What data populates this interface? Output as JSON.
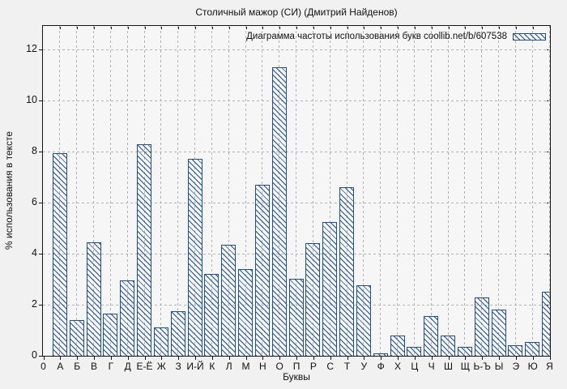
{
  "title": "Столичный мажор (СИ) (Дмитрий Найденов)",
  "legend": {
    "label": "Диаграмма частоты использования букв coollib.net/b/607538"
  },
  "axes": {
    "x_label": "Буквы",
    "y_label": "% использования в тексте",
    "x_origin_label": "0",
    "y_ticks": [
      0,
      2,
      4,
      6,
      8,
      10,
      12
    ]
  },
  "colors": {
    "bar": "#1d4e9e",
    "grid": "#b3b3b3",
    "figure_bg": "#f1f1f1",
    "plot_bg": "#f6f6f6",
    "border": "#151515",
    "text": "#111111"
  },
  "chart_data": {
    "type": "bar",
    "title": "Столичный мажор (СИ) (Дмитрий Найденов)",
    "xlabel": "Буквы",
    "ylabel": "% использования в тексте",
    "ylim": [
      0,
      13
    ],
    "grid": true,
    "legend_position": "top-right-inside",
    "legend_label": "Диаграмма частоты использования букв coollib.net/b/607538",
    "bar_style": "blue diagonal hatch, hollow",
    "categories": [
      "А",
      "Б",
      "В",
      "Г",
      "Д",
      "Е-Ё",
      "Ж",
      "З",
      "И-Й",
      "К",
      "Л",
      "М",
      "Н",
      "О",
      "П",
      "Р",
      "С",
      "Т",
      "У",
      "Ф",
      "Х",
      "Ц",
      "Ч",
      "Ш",
      "Щ",
      "Ь-Ъ",
      "Ы",
      "Э",
      "Ю",
      "Я"
    ],
    "values": [
      7.95,
      1.4,
      4.45,
      1.65,
      2.95,
      8.3,
      1.1,
      1.75,
      7.7,
      3.2,
      4.35,
      3.4,
      6.7,
      11.3,
      3.0,
      4.4,
      5.25,
      6.6,
      2.75,
      0.1,
      0.8,
      0.35,
      1.55,
      0.8,
      0.35,
      2.3,
      1.8,
      0.4,
      0.55,
      2.5
    ]
  }
}
